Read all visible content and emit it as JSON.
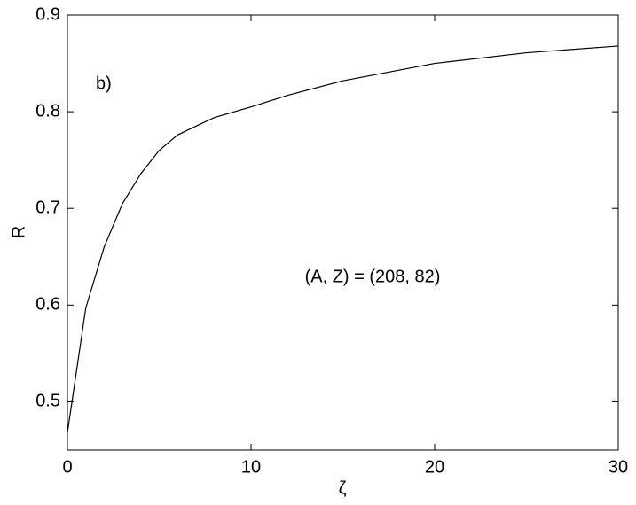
{
  "chart_data": {
    "type": "line",
    "x_label": "ζ",
    "y_label": "R",
    "annotations": [
      "b)",
      "(A, Z) = (208, 82)"
    ],
    "x": [
      0,
      1,
      2,
      3,
      4,
      5,
      6,
      7,
      8,
      10,
      12,
      15,
      20,
      25,
      30
    ],
    "series": [
      {
        "color": "#000000",
        "values": [
          0.468,
          0.597,
          0.66,
          0.705,
          0.736,
          0.76,
          0.776,
          0.785,
          0.794,
          0.805,
          0.817,
          0.832,
          0.85,
          0.861,
          0.868
        ]
      }
    ],
    "xlim": [
      0,
      30
    ],
    "xticks": [
      0,
      10,
      20,
      30
    ],
    "ylim": [
      0.45,
      0.9
    ],
    "yticks": [
      0.5,
      0.6,
      0.7,
      0.8,
      0.9
    ],
    "grid": false
  }
}
